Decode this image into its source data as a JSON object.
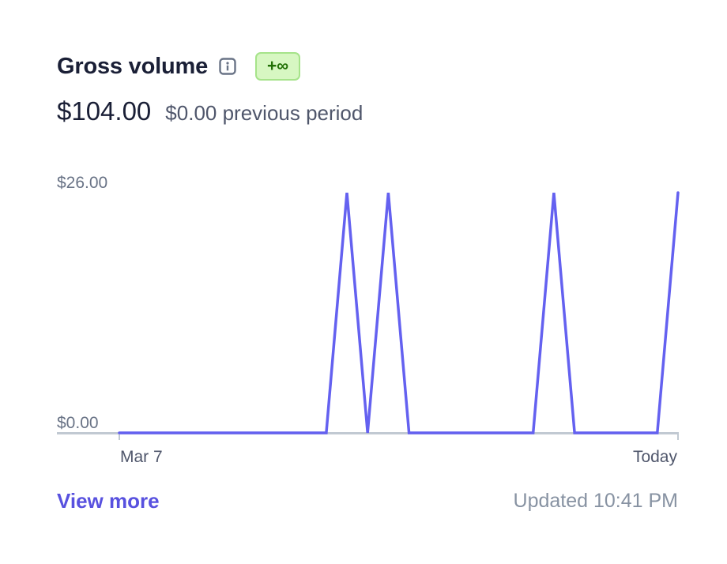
{
  "header": {
    "title": "Gross volume",
    "info_icon": "info-icon",
    "badge": "+∞"
  },
  "summary": {
    "value": "$104.00",
    "previous": "$0.00 previous period"
  },
  "chart_data": {
    "type": "line",
    "color": "#6461f0",
    "ytick_labels": [
      "$26.00",
      "$0.00"
    ],
    "ylim": [
      0,
      26
    ],
    "x_labels": [
      "Mar 7",
      "Today"
    ],
    "x": [
      0,
      5,
      5.5,
      6,
      6.5,
      7,
      10,
      10.5,
      11,
      13,
      13.5
    ],
    "values": [
      0,
      0,
      26,
      0,
      26,
      0,
      0,
      26,
      0,
      0,
      26
    ],
    "grid": false
  },
  "footer": {
    "view_more": "View more",
    "updated": "Updated 10:41 PM"
  }
}
